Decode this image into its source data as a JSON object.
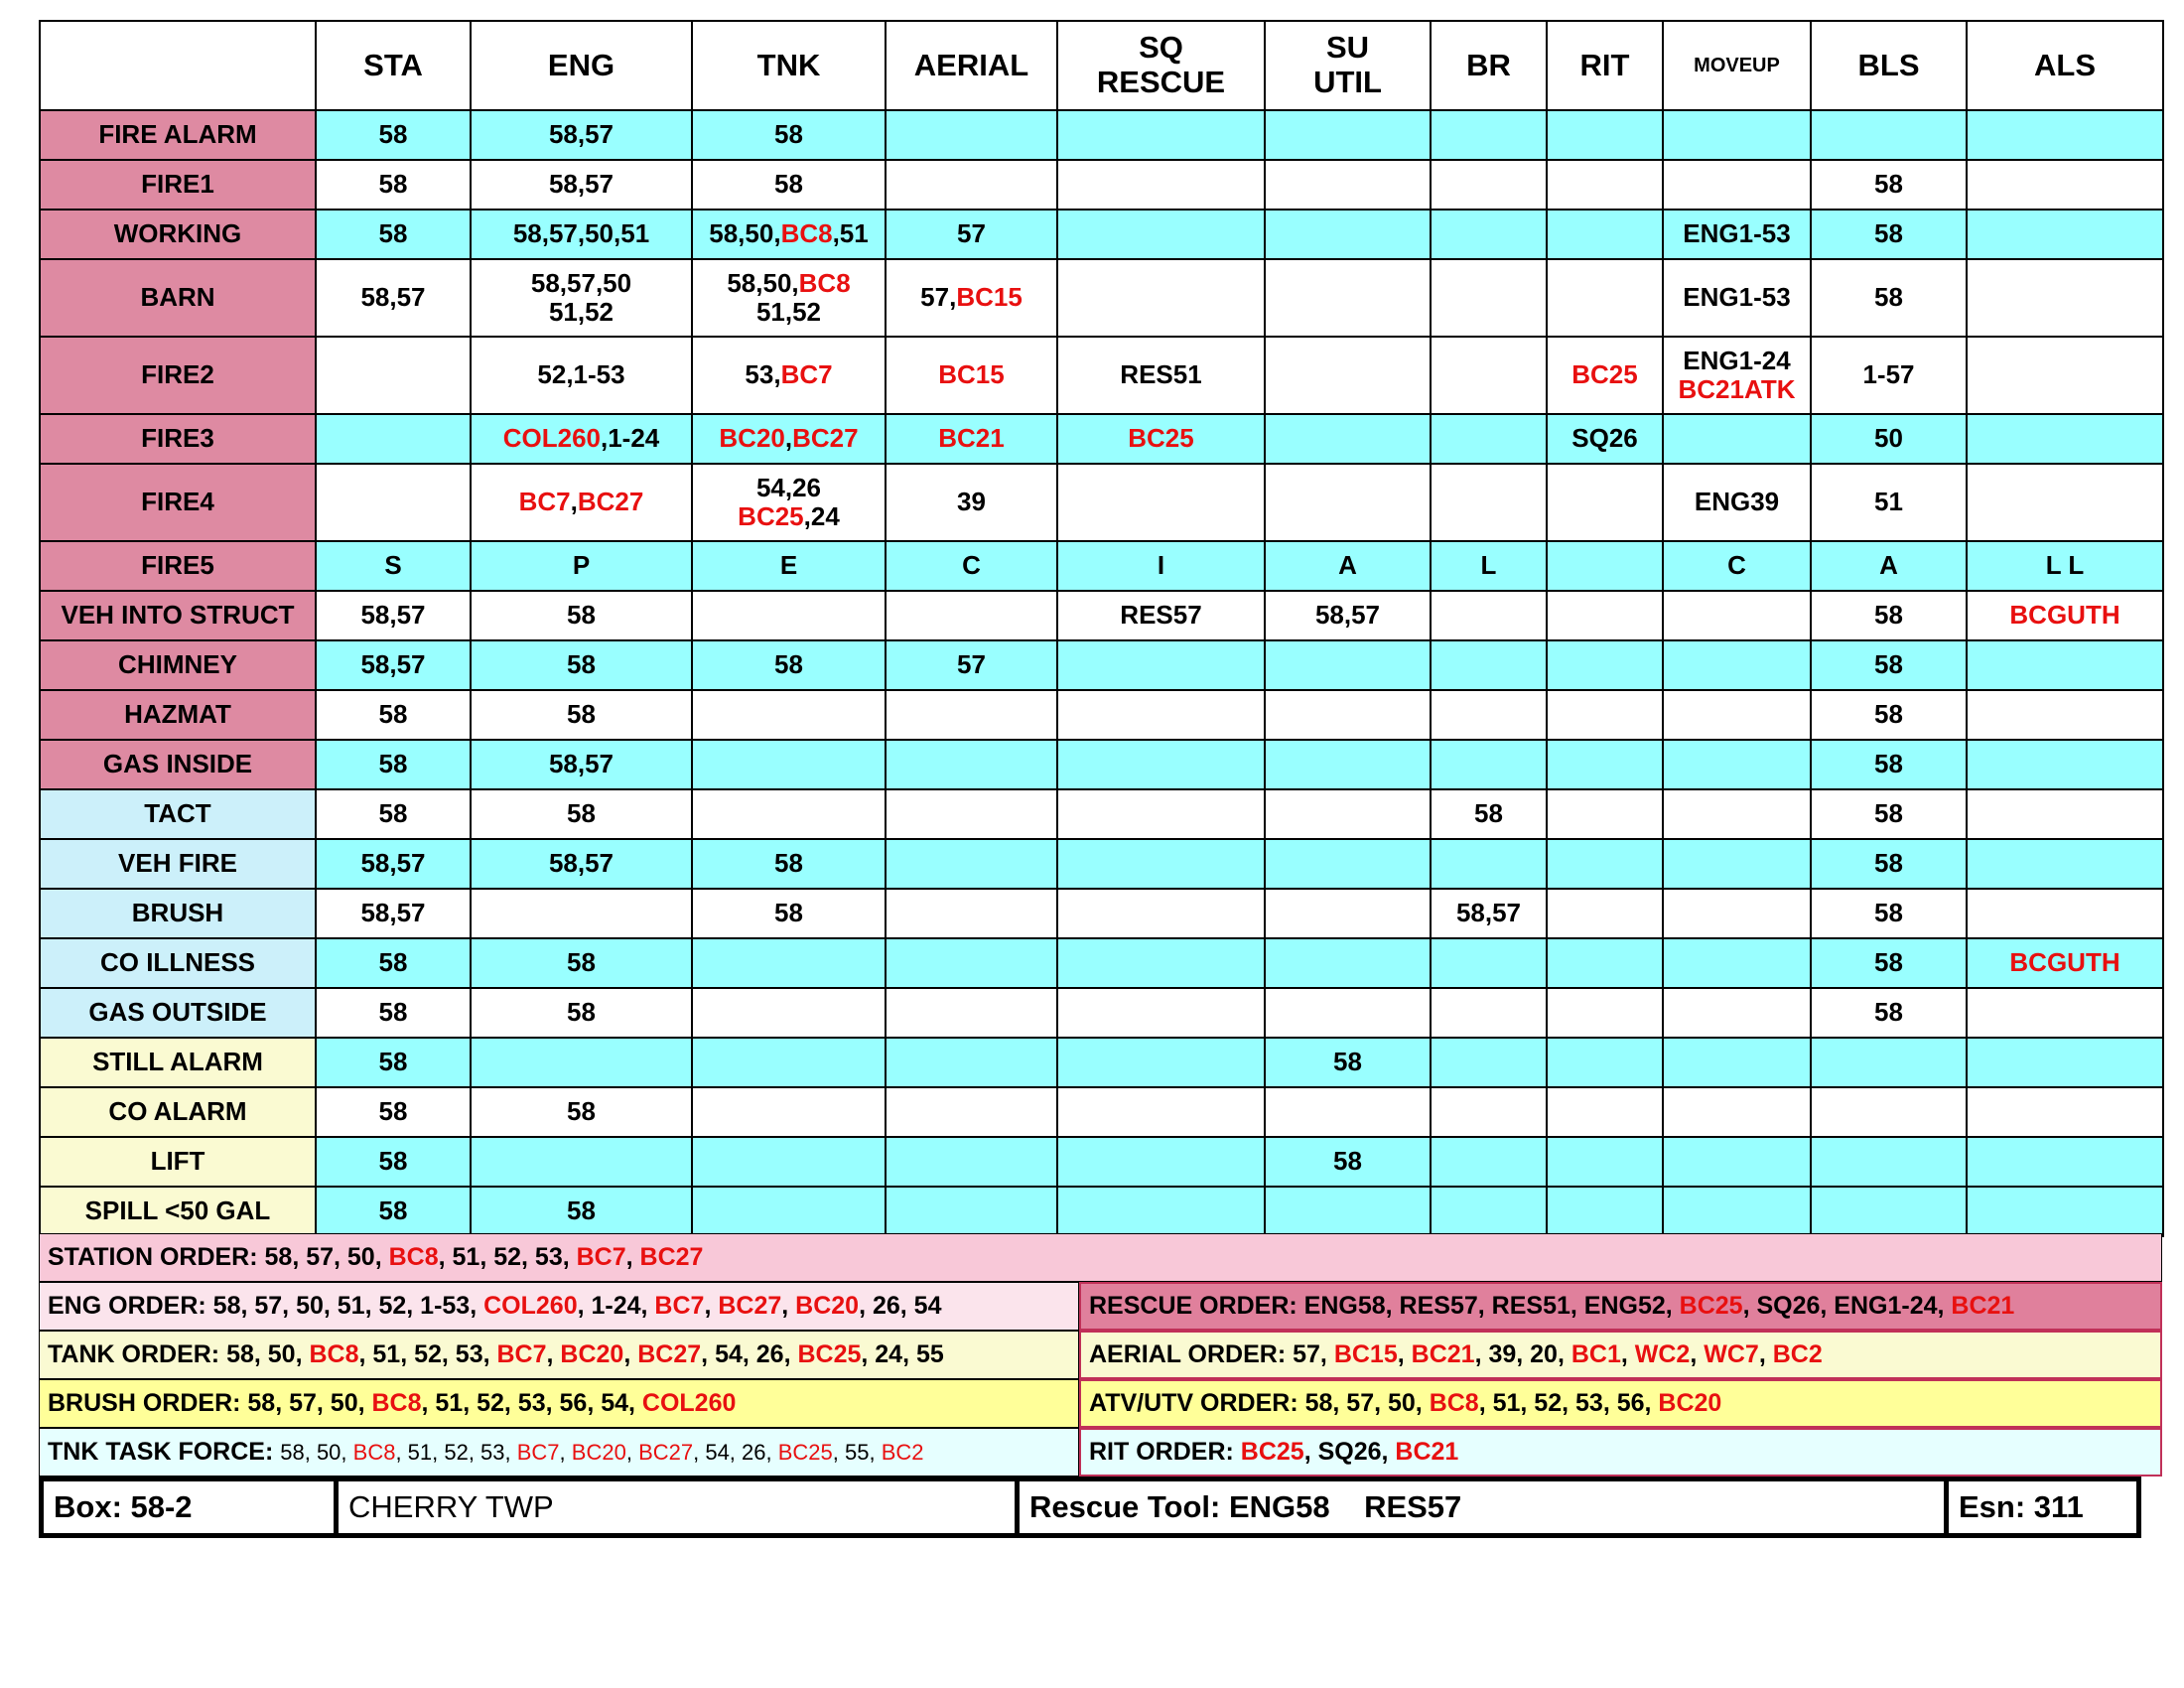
{
  "header": [
    "STA",
    "ENG",
    "TNK",
    "AERIAL",
    "SQ\nRESCUE",
    "SU\nUTIL",
    "BR",
    "RIT",
    "MOVEUP",
    "BLS",
    "ALS"
  ],
  "rows": [
    {
      "label": "FIRE ALARM",
      "label_color": "#de8aa2",
      "fill": "#99ffff",
      "cells": [
        "58",
        "58,57",
        "58",
        null,
        null,
        null,
        null,
        null,
        null,
        null,
        null
      ]
    },
    {
      "label": "FIRE1",
      "label_color": "#de8aa2",
      "fill": "#ffffff",
      "cells": [
        "58",
        "58,57",
        "58",
        null,
        null,
        null,
        null,
        null,
        null,
        "58",
        null
      ]
    },
    {
      "label": "WORKING",
      "label_color": "#de8aa2",
      "fill": "#99ffff",
      "cells": [
        "58",
        "58,57,50,51",
        [
          "58,50,",
          {
            "red": "BC8"
          },
          ",51"
        ],
        "57",
        null,
        null,
        null,
        null,
        "ENG1-53",
        "58",
        null
      ]
    },
    {
      "label": "BARN",
      "label_color": "#de8aa2",
      "fill": "#ffffff",
      "cells": [
        "58,57",
        "58,57,50\n51,52",
        [
          "58,50,",
          {
            "red": "BC8"
          },
          "\n51,52"
        ],
        [
          "57,",
          {
            "red": "BC15"
          }
        ],
        null,
        null,
        null,
        null,
        "ENG1-53",
        "58",
        null
      ]
    },
    {
      "label": "FIRE2",
      "label_color": "#de8aa2",
      "fill": "#ffffff",
      "cells": [
        null,
        "52,1-53",
        [
          "53,",
          {
            "red": "BC7"
          }
        ],
        {
          "red": "BC15"
        },
        "RES51",
        null,
        null,
        {
          "red": "BC25"
        },
        [
          "ENG1-24\n",
          {
            "red": "BC21ATK"
          }
        ],
        "1-57",
        null
      ]
    },
    {
      "label": "FIRE3",
      "label_color": "#de8aa2",
      "fill": "#99ffff",
      "cells": [
        null,
        [
          {
            "red": "COL260"
          },
          ",1-24"
        ],
        [
          {
            "red": "BC20"
          },
          ",",
          {
            "red": "BC27"
          }
        ],
        {
          "red": "BC21"
        },
        {
          "red": "BC25"
        },
        null,
        null,
        "SQ26",
        null,
        "50",
        null
      ]
    },
    {
      "label": "FIRE4",
      "label_color": "#de8aa2",
      "fill": "#ffffff",
      "cells": [
        null,
        [
          {
            "red": "BC7"
          },
          ",",
          {
            "red": "BC27"
          }
        ],
        [
          "54,26\n",
          {
            "red": "BC25"
          },
          ",24"
        ],
        "39",
        null,
        null,
        null,
        null,
        "ENG39",
        "51",
        null
      ]
    },
    {
      "label": "FIRE5",
      "label_color": "#de8aa2",
      "fill": "#99ffff",
      "cells": [
        "S",
        "P",
        "E",
        "C",
        "I",
        "A",
        "L",
        null,
        "C",
        "A",
        "L      L"
      ]
    },
    {
      "label": "VEH INTO STRUCT",
      "label_color": "#de8aa2",
      "fill": "#ffffff",
      "cells": [
        "58,57",
        "58",
        null,
        null,
        "RES57",
        "58,57",
        null,
        null,
        null,
        "58",
        {
          "red": "BCGUTH"
        }
      ]
    },
    {
      "label": "CHIMNEY",
      "label_color": "#de8aa2",
      "fill": "#99ffff",
      "cells": [
        "58,57",
        "58",
        "58",
        "57",
        null,
        null,
        null,
        null,
        null,
        "58",
        null
      ]
    },
    {
      "label": "HAZMAT",
      "label_color": "#de8aa2",
      "fill": "#ffffff",
      "cells": [
        "58",
        "58",
        null,
        null,
        null,
        null,
        null,
        null,
        null,
        "58",
        null
      ]
    },
    {
      "label": "GAS INSIDE",
      "label_color": "#de8aa2",
      "fill": "#99ffff",
      "cells": [
        "58",
        "58,57",
        null,
        null,
        null,
        null,
        null,
        null,
        null,
        "58",
        null
      ]
    },
    {
      "label": "TACT",
      "label_color": "#ccf0fa",
      "fill": "#ffffff",
      "cells": [
        "58",
        "58",
        null,
        null,
        null,
        null,
        "58",
        null,
        null,
        "58",
        null
      ]
    },
    {
      "label": "VEH FIRE",
      "label_color": "#ccf0fa",
      "fill": "#99ffff",
      "cells": [
        "58,57",
        "58,57",
        "58",
        null,
        null,
        null,
        null,
        null,
        null,
        "58",
        null
      ]
    },
    {
      "label": "BRUSH",
      "label_color": "#ccf0fa",
      "fill": "#ffffff",
      "cells": [
        "58,57",
        null,
        "58",
        null,
        null,
        null,
        "58,57",
        null,
        null,
        "58",
        null
      ]
    },
    {
      "label": "CO ILLNESS",
      "label_color": "#ccf0fa",
      "fill": "#99ffff",
      "cells": [
        "58",
        "58",
        null,
        null,
        null,
        null,
        null,
        null,
        null,
        "58",
        {
          "red": "BCGUTH"
        }
      ]
    },
    {
      "label": "GAS OUTSIDE",
      "label_color": "#ccf0fa",
      "fill": "#ffffff",
      "cells": [
        "58",
        "58",
        null,
        null,
        null,
        null,
        null,
        null,
        null,
        "58",
        null
      ]
    },
    {
      "label": "STILL ALARM",
      "label_color": "#fafad2",
      "fill": "#99ffff",
      "cells": [
        "58",
        null,
        null,
        null,
        null,
        "58",
        null,
        null,
        null,
        null,
        null
      ]
    },
    {
      "label": "CO ALARM",
      "label_color": "#fafad2",
      "fill": "#ffffff",
      "cells": [
        "58",
        "58",
        null,
        null,
        null,
        null,
        null,
        null,
        null,
        null,
        null
      ]
    },
    {
      "label": "LIFT",
      "label_color": "#fafad2",
      "fill": "#99ffff",
      "cells": [
        "58",
        null,
        null,
        null,
        null,
        "58",
        null,
        null,
        null,
        null,
        null
      ]
    },
    {
      "label": "SPILL <50 GAL",
      "label_color": "#fafad2",
      "fill": "#99ffff",
      "cells": [
        "58",
        "58",
        null,
        null,
        null,
        null,
        null,
        null,
        null,
        null,
        null
      ]
    }
  ],
  "orders": {
    "station": {
      "fill": "#f8c8d8",
      "runs": [
        "STATION ORDER: 58, 57, 50, ",
        {
          "red": "BC8"
        },
        ", 51, 52, 53, ",
        {
          "red": "BC7"
        },
        ", ",
        {
          "red": "BC27"
        }
      ]
    },
    "left": [
      {
        "fill": "#fbe4ec",
        "runs": [
          "ENG ORDER: 58, 57, 50, 51, 52, 1-53, ",
          {
            "red": "COL260"
          },
          ", 1-24, ",
          {
            "red": "BC7"
          },
          ", ",
          {
            "red": "BC27"
          },
          ", ",
          {
            "red": "BC20"
          },
          ", 26, 54"
        ]
      },
      {
        "fill": "#fafad2",
        "runs": [
          "TANK ORDER: 58, 50, ",
          {
            "red": "BC8"
          },
          ", 51, 52, 53, ",
          {
            "red": "BC7"
          },
          ", ",
          {
            "red": "BC20"
          },
          ", ",
          {
            "red": "BC27"
          },
          ", 54, 26, ",
          {
            "red": "BC25"
          },
          ", 24, 55"
        ]
      },
      {
        "fill": "#ffff99",
        "runs": [
          "BRUSH ORDER: 58, 57, 50, ",
          {
            "red": "BC8"
          },
          ", 51, 52, 53, 56, 54, ",
          {
            "red": "COL260"
          }
        ]
      },
      {
        "fill": "#e6ffff",
        "small_values": true,
        "runs": [
          "TNK TASK FORCE: ",
          "58, 50, ",
          {
            "red": "BC8"
          },
          ", 51, 52, 53, ",
          {
            "red": "BC7"
          },
          ", ",
          {
            "red": "BC20"
          },
          ", ",
          {
            "red": "BC27"
          },
          ", 54, 26, ",
          {
            "red": "BC25"
          },
          ", 55, ",
          {
            "red": "BC2"
          }
        ]
      }
    ],
    "right": [
      {
        "fill": "#e0809c",
        "runs": [
          "RESCUE ORDER: ENG58, RES57, RES51, ENG52, ",
          {
            "red": "BC25"
          },
          ", SQ26, ENG1-24, ",
          {
            "red": "BC21"
          }
        ]
      },
      {
        "fill": "#fafad2",
        "runs": [
          "AERIAL ORDER: 57, ",
          {
            "red": "BC15"
          },
          ", ",
          {
            "red": "BC21"
          },
          ", 39, 20, ",
          {
            "red": "BC1"
          },
          ", ",
          {
            "red": "WC2"
          },
          ", ",
          {
            "red": "WC7"
          },
          ", ",
          {
            "red": "BC2"
          }
        ]
      },
      {
        "fill": "#ffff99",
        "runs": [
          "ATV/UTV ORDER: 58, 57, 50, ",
          {
            "red": "BC8"
          },
          ", 51, 52, 53, 56, ",
          {
            "red": "BC20"
          }
        ]
      },
      {
        "fill": "#e6ffff",
        "runs": [
          "RIT ORDER: ",
          {
            "red": "BC25"
          },
          ", SQ26, ",
          {
            "red": "BC21"
          }
        ]
      }
    ]
  },
  "footer": {
    "box": "Box: 58-2",
    "area": "CHERRY TWP",
    "rescue_tool": "Rescue Tool: ENG58    RES57",
    "esn": "Esn: 311"
  }
}
